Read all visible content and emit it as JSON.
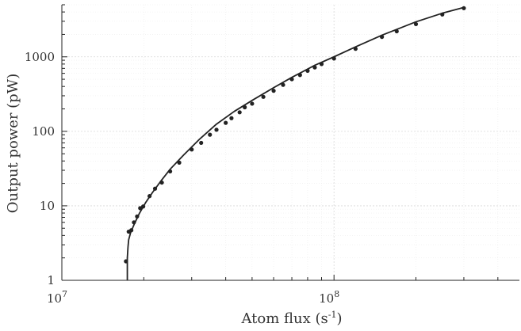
{
  "chart_data": {
    "type": "line",
    "title": "",
    "xlabel": "Atom flux (s",
    "xlabel_sup": "-1",
    "xlabel_close": ")",
    "ylabel": "Output power (pW)",
    "xscale": "log",
    "yscale": "log",
    "xlim": [
      10000000,
      480000000
    ],
    "ylim": [
      1,
      5000
    ],
    "x_ticks": [
      {
        "value": 10000000,
        "base": "10",
        "exp": "7"
      },
      {
        "value": 100000000,
        "base": "10",
        "exp": "8"
      }
    ],
    "y_ticks": [
      {
        "value": 1,
        "label": "1"
      },
      {
        "value": 10,
        "label": "10"
      },
      {
        "value": 100,
        "label": "100"
      },
      {
        "value": 1000,
        "label": "1000"
      }
    ],
    "grid": true,
    "series": [
      {
        "color": "#222222",
        "line_x": [
          17400000,
          17400000,
          17500000,
          17600000,
          17900000,
          18500000,
          19300000,
          20300000,
          21500000,
          23000000,
          25000000,
          28000000,
          32000000,
          37000000,
          43000000,
          50000000,
          60000000,
          70000000,
          85000000,
          100000000,
          120000000,
          150000000,
          200000000,
          250000000,
          300000000
        ],
        "line_y": [
          1,
          2.0,
          2.8,
          3.5,
          4.4,
          5.8,
          8.0,
          11.0,
          15.0,
          21.0,
          31.0,
          48.0,
          78.0,
          125.0,
          185.0,
          260.0,
          385.0,
          530.0,
          770.0,
          1000.0,
          1360.0,
          1950.0,
          2950.0,
          3850.0,
          4600.0
        ],
        "points": [
          [
            17200000,
            1.8
          ],
          [
            17600000,
            4.5
          ],
          [
            18000000,
            4.7
          ],
          [
            18400000,
            6.0
          ],
          [
            18900000,
            7.2
          ],
          [
            19400000,
            9.3
          ],
          [
            19900000,
            9.8
          ],
          [
            21000000,
            13.5
          ],
          [
            22000000,
            17.0
          ],
          [
            23300000,
            20.5
          ],
          [
            25000000,
            29.0
          ],
          [
            27000000,
            38.0
          ],
          [
            30000000,
            57.0
          ],
          [
            32500000,
            70.0
          ],
          [
            35000000,
            90.0
          ],
          [
            37000000,
            105.0
          ],
          [
            40000000,
            130.0
          ],
          [
            42000000,
            150.0
          ],
          [
            45000000,
            180.0
          ],
          [
            47000000,
            210.0
          ],
          [
            50000000,
            235.0
          ],
          [
            55000000,
            290.0
          ],
          [
            60000000,
            350.0
          ],
          [
            65000000,
            420.0
          ],
          [
            70000000,
            500.0
          ],
          [
            75000000,
            570.0
          ],
          [
            80000000,
            650.0
          ],
          [
            85000000,
            720.0
          ],
          [
            90000000,
            800.0
          ],
          [
            100000000,
            950.0
          ],
          [
            120000000,
            1280.0
          ],
          [
            150000000,
            1850.0
          ],
          [
            170000000,
            2200.0
          ],
          [
            200000000,
            2750.0
          ],
          [
            250000000,
            3700.0
          ],
          [
            300000000,
            4500.0
          ]
        ]
      }
    ]
  }
}
